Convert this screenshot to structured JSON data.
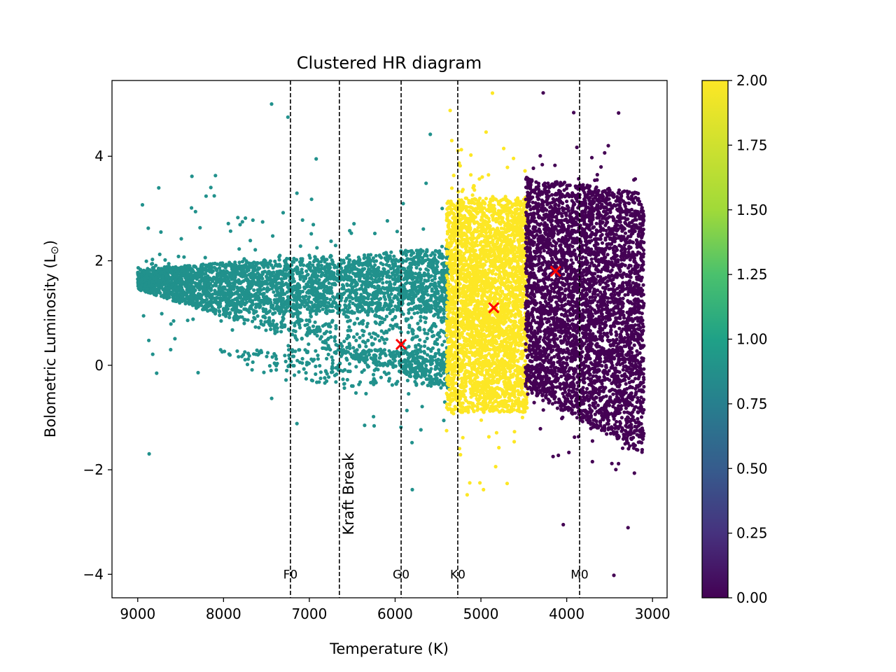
{
  "chart_data": {
    "type": "scatter",
    "title": "Clustered HR diagram",
    "xlabel": "Temperature (K)",
    "ylabel": "Bolometric Luminosity (L",
    "ylabel_sub": "⊙",
    "ylabel_close": ")",
    "xlim": [
      9300,
      2830
    ],
    "ylim": [
      -4.45,
      5.45
    ],
    "x_ticks": [
      9000,
      8000,
      7000,
      6000,
      5000,
      4000,
      3000
    ],
    "x_tick_labels": [
      "9000",
      "8000",
      "7000",
      "6000",
      "5000",
      "4000",
      "3000"
    ],
    "y_ticks": [
      -4,
      -2,
      0,
      2,
      4
    ],
    "y_tick_labels": [
      "−4",
      "−2",
      "0",
      "2",
      "4"
    ],
    "colorbar": {
      "min": 0.0,
      "max": 2.0,
      "colormap": "viridis",
      "ticks": [
        0.0,
        0.25,
        0.5,
        0.75,
        1.0,
        1.25,
        1.5,
        1.75,
        2.0
      ],
      "tick_labels": [
        "0.00",
        "0.25",
        "0.50",
        "0.75",
        "1.00",
        "1.25",
        "1.50",
        "1.75",
        "2.00"
      ]
    },
    "vertical_lines": [
      {
        "x": 7220,
        "label": "F0"
      },
      {
        "x": 6650,
        "label": "Kraft Break",
        "rotated": true
      },
      {
        "x": 5930,
        "label": "G0"
      },
      {
        "x": 5270,
        "label": "K0"
      },
      {
        "x": 3850,
        "label": "M0"
      }
    ],
    "clusters": [
      {
        "cluster": 1,
        "color": "#21918c",
        "temp_range": [
          9000,
          5380
        ],
        "centroid": {
          "x": 5930,
          "y": 0.4
        }
      },
      {
        "cluster": 2,
        "color": "#fde725",
        "temp_range": [
          5400,
          4460
        ],
        "centroid": {
          "x": 4850,
          "y": 1.1
        }
      },
      {
        "cluster": 0,
        "color": "#440154",
        "temp_range": [
          4480,
          3100
        ],
        "centroid": {
          "x": 4130,
          "y": 1.8
        }
      }
    ],
    "centroid_color": "#ff0000",
    "grid": false,
    "legend": "none"
  }
}
